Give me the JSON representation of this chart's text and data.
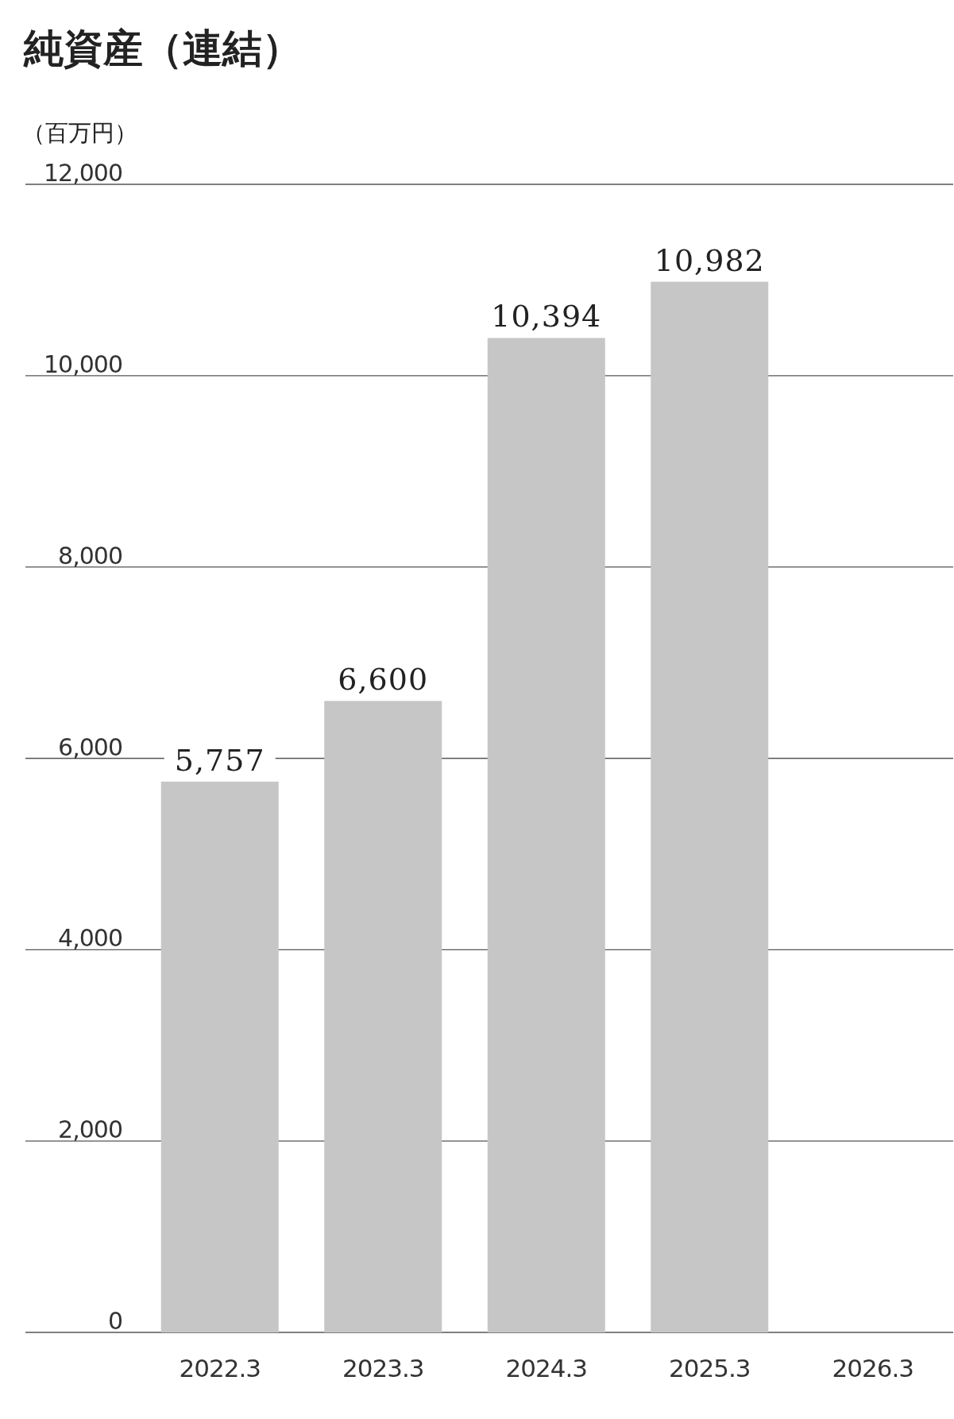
{
  "chart_data": {
    "type": "bar",
    "title": "純資産（連結）",
    "ylabel": "（百万円）",
    "categories": [
      "2022.3",
      "2023.3",
      "2024.3",
      "2025.3",
      "2026.3"
    ],
    "values": [
      5757,
      6600,
      10394,
      10982,
      null
    ],
    "value_labels": [
      "5,757",
      "6,600",
      "10,394",
      "10,982",
      null
    ],
    "color": "#c6c6c6",
    "ylim": [
      0,
      12000
    ],
    "yticks": [
      0,
      {
        "value": 2000,
        "label": "2,000"
      },
      {
        "value": 4000,
        "label": "4,000"
      },
      {
        "value": 6000,
        "label": "6,000"
      },
      {
        "value": 8000,
        "label": "8,000"
      },
      {
        "value": 10000,
        "label": "10,000"
      },
      {
        "value": 12000,
        "label": "12,000"
      }
    ],
    "grid": "y"
  }
}
